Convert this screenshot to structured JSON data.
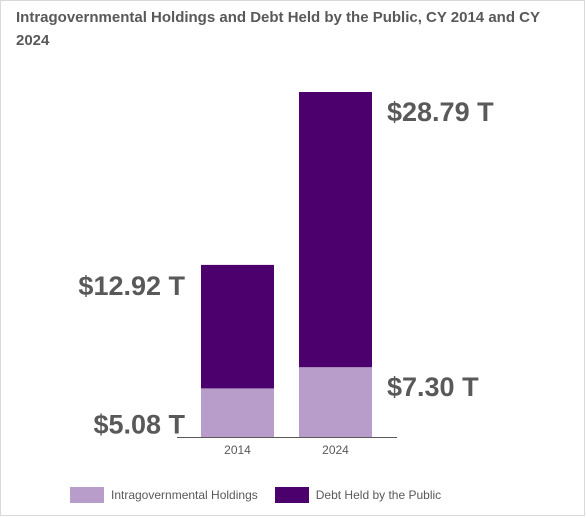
{
  "title": "Intragovernmental Holdings and Debt Held by the Public, CY 2014 and CY 2024",
  "chart_data": {
    "type": "bar",
    "stacked": true,
    "categories": [
      "2014",
      "2024"
    ],
    "series": [
      {
        "name": "Intragovernmental Holdings",
        "values": [
          5.08,
          7.3
        ],
        "color": "#b89cc9"
      },
      {
        "name": "Debt Held by the Public",
        "values": [
          12.92,
          28.79
        ],
        "color": "#4b006e"
      }
    ],
    "data_labels": [
      {
        "category": "2014",
        "series": "Intragovernmental Holdings",
        "text": "$5.08 T"
      },
      {
        "category": "2014",
        "series": "Debt Held by the Public",
        "text": "$12.92 T"
      },
      {
        "category": "2024",
        "series": "Intragovernmental Holdings",
        "text": "$7.30 T"
      },
      {
        "category": "2024",
        "series": "Debt Held by the Public",
        "text": "$28.79 T"
      }
    ],
    "ylim": [
      0,
      36.09
    ],
    "grid": false,
    "legend_position": "bottom",
    "colors": {
      "axis": "#595959",
      "label": "#595959"
    }
  }
}
